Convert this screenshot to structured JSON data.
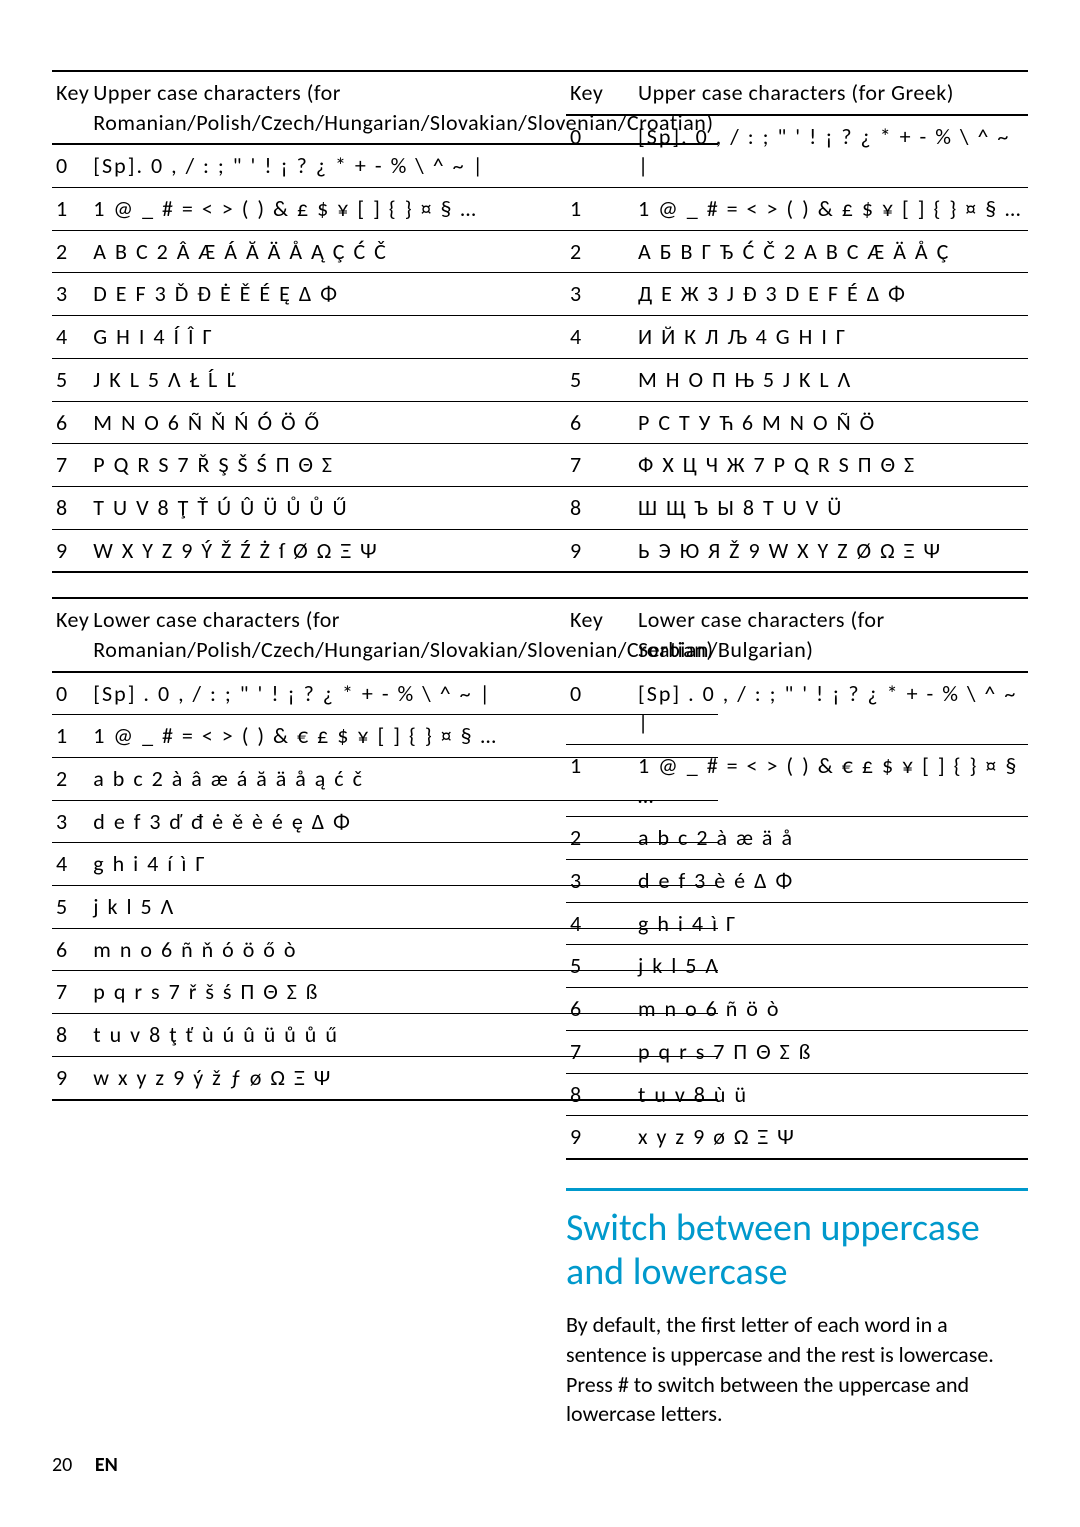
{
  "leftTables": [
    {
      "header": {
        "key": "Key",
        "desc": "Upper case characters (for Romanian/Polish/Czech/Hungarian/Slovakian/Slovenian/Croatian)"
      },
      "rows": [
        {
          "k": "0",
          "v": "[Sp]. 0 , / : ; \" ' ! ¡ ? ¿ * + - % \\ ^ ~ |"
        },
        {
          "k": "1",
          "v": "1 @ _ # = < > ( ) & £ $ ¥ [ ] { } ¤ § …"
        },
        {
          "k": "2",
          "v": "A B C 2 Â Æ Á Ă Ä Å Ą Ç Ć Č"
        },
        {
          "k": "3",
          "v": "D E F 3 Ď Đ Ė Ě É Ę Δ Φ"
        },
        {
          "k": "4",
          "v": "G H I 4 Í Î Γ"
        },
        {
          "k": "5",
          "v": "J K L 5 Λ Ł Ĺ Ľ"
        },
        {
          "k": "6",
          "v": "M N O 6 Ñ Ň Ń Ó Ö Ő"
        },
        {
          "k": "7",
          "v": "P Q R S 7 Ř Ş Š Ś Π Θ Σ"
        },
        {
          "k": "8",
          "v": "T U V 8 Ţ Ť Ú Û Ü Ů Ů Ű"
        },
        {
          "k": "9",
          "v": "W X Y Z 9 Ý Ž Ź Ż ſ Ø Ω Ξ Ψ"
        }
      ]
    },
    {
      "header": {
        "key": "Key",
        "desc": "Lower case characters (for Romanian/Polish/Czech/Hungarian/Slovakian/Slovenian/Croatian)"
      },
      "rows": [
        {
          "k": "0",
          "v": "[Sp] . 0 , / : ; \" ' ! ¡ ? ¿ * + - % \\ ^ ~ |"
        },
        {
          "k": "1",
          "v": "1 @ _ # = < > ( ) & € £ $ ¥ [ ] { } ¤ § …"
        },
        {
          "k": "2",
          "v": "a b c 2 à â æ á ă ä å ą ć č"
        },
        {
          "k": "3",
          "v": "d e f 3 ď đ ė ě è é ę Δ Φ"
        },
        {
          "k": "4",
          "v": "g h i 4 í ì Γ"
        },
        {
          "k": "5",
          "v": "j k l 5 Λ"
        },
        {
          "k": "6",
          "v": "m n o 6 ñ ň ó ö ő ò"
        },
        {
          "k": "7",
          "v": "p q r s 7 ř š ś Π Θ Σ ß"
        },
        {
          "k": "8",
          "v": "t u v 8 ţ ť ù ú û ü ů ů ű"
        },
        {
          "k": "9",
          "v": "w x y z 9 ý ž ƒ ø Ω Ξ Ψ"
        }
      ]
    }
  ],
  "rightTables": [
    {
      "header": {
        "key": "Key",
        "desc": "Upper case characters (for Greek)"
      },
      "rows": [
        {
          "k": "0",
          "v": "[Sp]. 0 , / : ; \" ' ! ¡ ? ¿ * + - % \\ ^ ~ |"
        },
        {
          "k": "1",
          "v": "1 @ _ # = < > ( ) & £ $ ¥ [ ] { } ¤ § …"
        },
        {
          "k": "2",
          "v": "А Б В Г Ђ Ć Č 2 A B C Æ Ä Å Ç"
        },
        {
          "k": "3",
          "v": "Д Е Ж З Ј Ð 3 D E F É Δ Φ"
        },
        {
          "k": "4",
          "v": "И Й К Л Љ 4 G H I Γ"
        },
        {
          "k": "5",
          "v": "М Н О П Њ 5 J K L Λ"
        },
        {
          "k": "6",
          "v": "Р С Т У Ћ 6 M N O Ñ Ö"
        },
        {
          "k": "7",
          "v": "Ф Х Ц Ч Ж 7 P Q R S Π Θ Σ"
        },
        {
          "k": "8",
          "v": "Ш Щ Ъ Ы 8 T U V Ü"
        },
        {
          "k": "9",
          "v": "Ь Э Ю Я Ž 9 W X Y Z Ø Ω Ξ Ψ"
        }
      ]
    },
    {
      "header": {
        "key": "Key",
        "desc": "Lower case characters (for Serbian/Bulgarian)"
      },
      "rows": [
        {
          "k": "0",
          "v": "[Sp] . 0 , / : ; \" ' ! ¡ ? ¿ * + - % \\ ^ ~ |"
        },
        {
          "k": "1",
          "v": "1 @ _ # = < > ( ) & € £ $ ¥ [ ] { } ¤ § …"
        },
        {
          "k": "2",
          "v": "a b c 2 à æ ä å"
        },
        {
          "k": "3",
          "v": "d e f 3 è é Δ Φ"
        },
        {
          "k": "4",
          "v": "g h i 4 ì Γ"
        },
        {
          "k": "5",
          "v": "j k l 5 Λ"
        },
        {
          "k": "6",
          "v": "m n o 6 ñ ö ò"
        },
        {
          "k": "7",
          "v": "p q r s 7 Π Θ Σ ß"
        },
        {
          "k": "8",
          "v": "t u v 8 ù ü"
        },
        {
          "k": "9",
          "v": "x y z 9 ø Ω Ξ Ψ"
        }
      ]
    }
  ],
  "section": {
    "title": "Switch between uppercase and lowercase",
    "body": "By default, the first letter of each word in a sentence is uppercase and the rest is lowercase. Press # to switch between the uppercase and lowercase letters."
  },
  "footer": {
    "page": "20",
    "lang": "EN"
  }
}
